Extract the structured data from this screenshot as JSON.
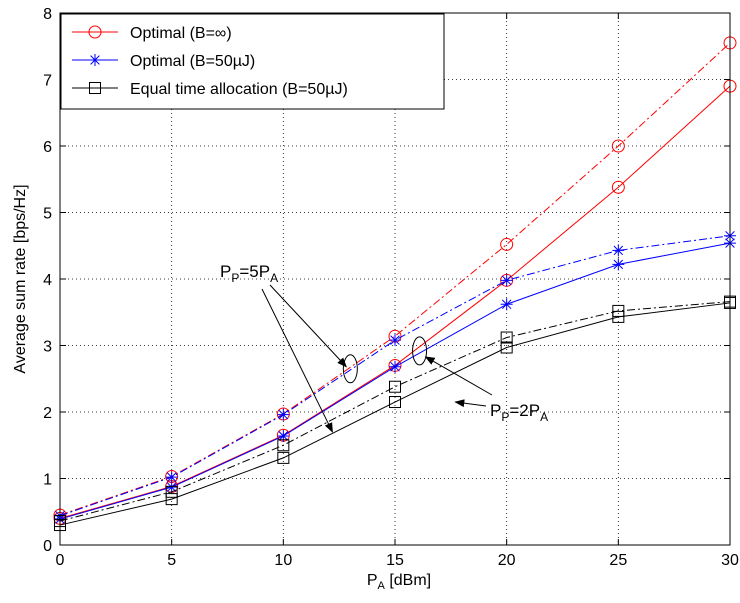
{
  "chart_data": {
    "type": "line",
    "xlabel": "P",
    "xlabel_sub": "A",
    "xlabel_suffix": " [dBm]",
    "ylabel": "Average sum rate [bps/Hz]",
    "xlim": [
      0,
      30
    ],
    "ylim": [
      0,
      8
    ],
    "xticks": [
      "0",
      "5",
      "10",
      "15",
      "20",
      "25",
      "30"
    ],
    "yticks": [
      "0",
      "1",
      "2",
      "3",
      "4",
      "5",
      "6",
      "7",
      "8"
    ],
    "grid": true,
    "legend_position": "top-left",
    "x": [
      0,
      5,
      10,
      15,
      20,
      25,
      30
    ],
    "series": [
      {
        "name": "Optimal (B=∞)",
        "group": "Pp=5PA",
        "values": [
          0.45,
          1.03,
          1.97,
          3.14,
          4.52,
          6.0,
          7.55
        ],
        "color": "#ff0000",
        "marker": "circle",
        "dash": "dashdot"
      },
      {
        "name": "Optimal (B=∞)",
        "group": "Pp=2PA",
        "values": [
          0.4,
          0.88,
          1.65,
          2.7,
          3.98,
          5.38,
          6.9
        ],
        "color": "#ff0000",
        "marker": "circle",
        "dash": "solid"
      },
      {
        "name": "Optimal (B=50µJ)",
        "group": "Pp=5PA",
        "values": [
          0.44,
          1.02,
          1.96,
          3.08,
          3.98,
          4.43,
          4.65
        ],
        "color": "#0000ff",
        "marker": "star",
        "dash": "dashdot"
      },
      {
        "name": "Optimal (B=50µJ)",
        "group": "Pp=2PA",
        "values": [
          0.39,
          0.87,
          1.64,
          2.68,
          3.62,
          4.22,
          4.54
        ],
        "color": "#0000ff",
        "marker": "star",
        "dash": "solid"
      },
      {
        "name": "Equal time allocation (B=50µJ)",
        "group": "Pp=5PA",
        "values": [
          0.36,
          0.8,
          1.5,
          2.38,
          3.12,
          3.52,
          3.66
        ],
        "color": "#000000",
        "marker": "square",
        "dash": "dashdot"
      },
      {
        "name": "Equal time allocation (B=50µJ)",
        "group": "Pp=2PA",
        "values": [
          0.3,
          0.69,
          1.31,
          2.15,
          2.97,
          3.43,
          3.64
        ],
        "color": "#000000",
        "marker": "square",
        "dash": "solid"
      }
    ],
    "legend": [
      {
        "label": "Optimal (B=∞)",
        "color": "#ff0000",
        "marker": "circle"
      },
      {
        "label": "Optimal (B=50µJ)",
        "color": "#0000ff",
        "marker": "star"
      },
      {
        "label": "Equal time allocation (B=50µJ)",
        "color": "#000000",
        "marker": "square"
      }
    ],
    "annotations": [
      {
        "id": "pp5",
        "main": "P",
        "sub1": "P",
        "mid": "=5P",
        "sub2": "A",
        "ellipse_at": [
          13,
          2.65
        ],
        "pointing_to": [
          12.2,
          1.7
        ]
      },
      {
        "id": "pp2",
        "main": "P",
        "sub1": "P",
        "mid": "=2P",
        "sub2": "A",
        "ellipse_at": [
          16.1,
          2.92
        ],
        "pointing_to": [
          17.7,
          2.15
        ]
      }
    ]
  }
}
